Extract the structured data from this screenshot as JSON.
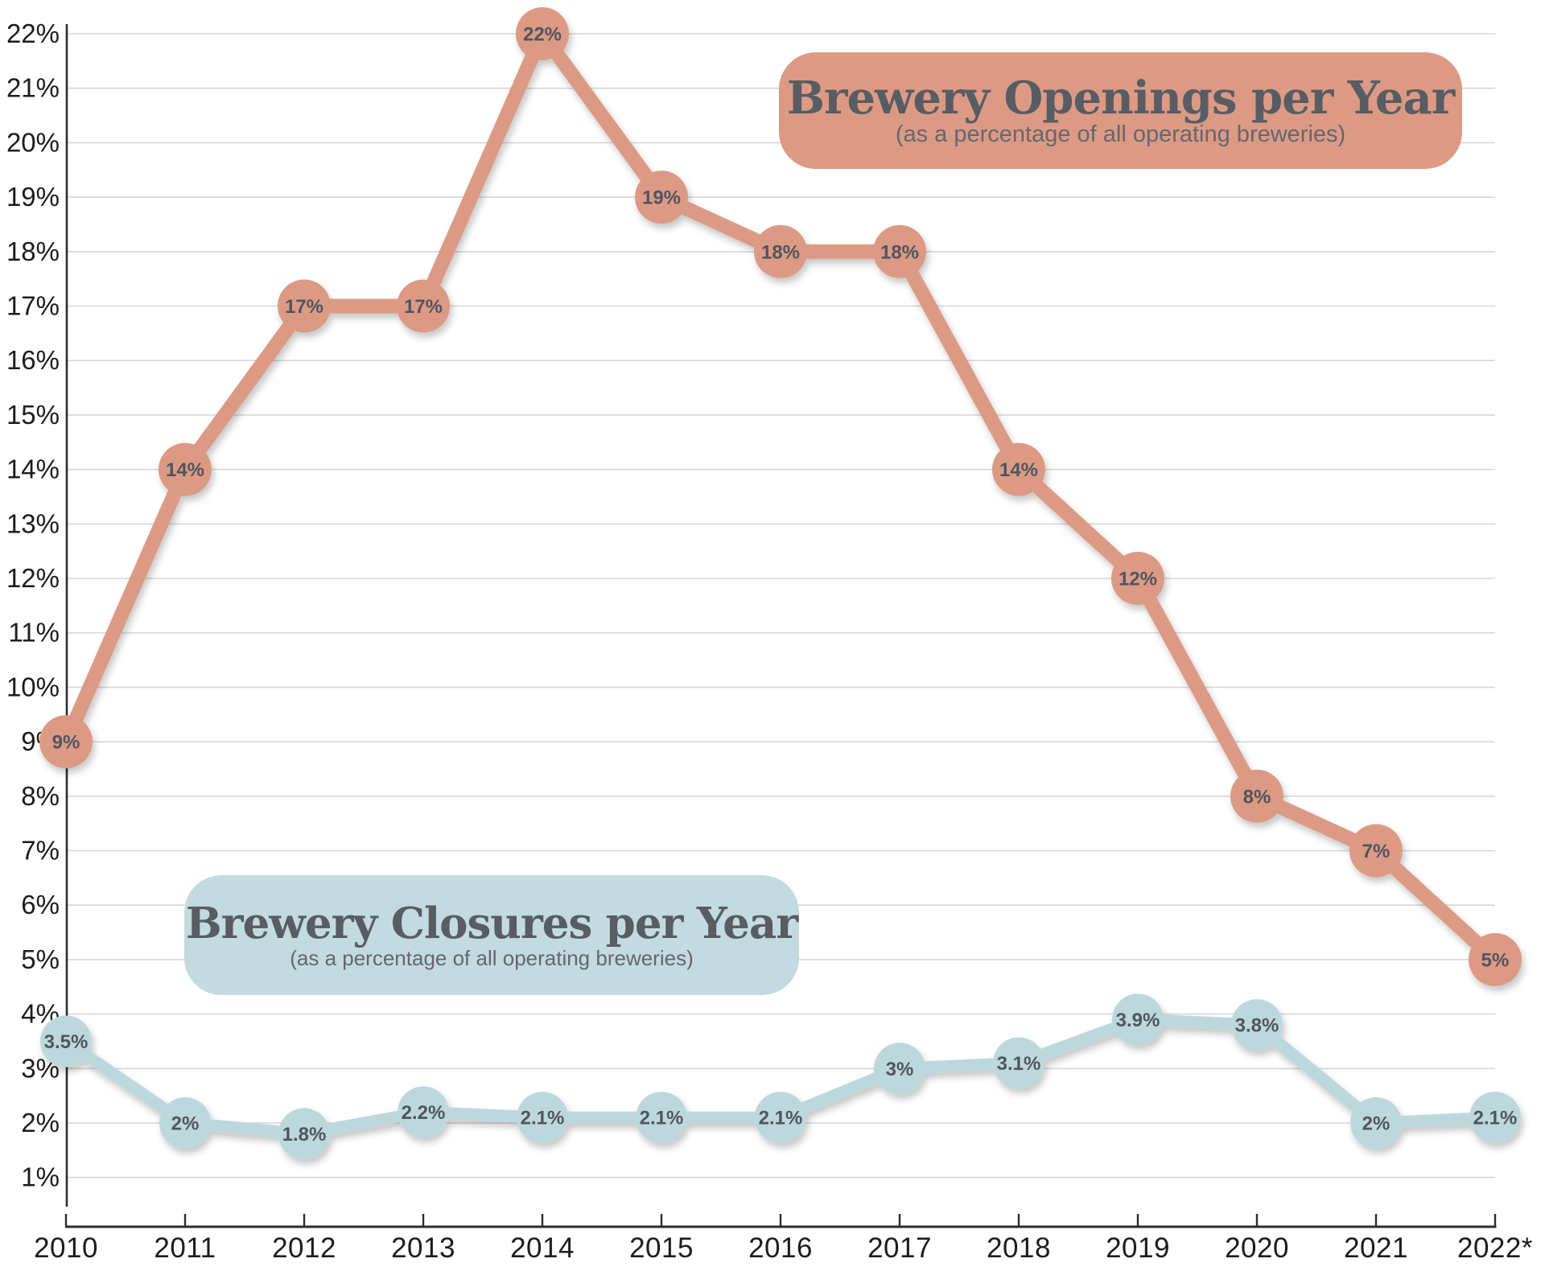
{
  "chart_data": {
    "type": "line",
    "categories": [
      "2010",
      "2011",
      "2012",
      "2013",
      "2014",
      "2015",
      "2016",
      "2017",
      "2018",
      "2019",
      "2020",
      "2021",
      "2022*"
    ],
    "series": [
      {
        "name": "Brewery Openings per Year",
        "values": [
          9,
          14,
          17,
          17,
          22,
          19,
          18,
          18,
          14,
          12,
          8,
          7,
          5
        ],
        "point_labels": [
          "9%",
          "14%",
          "17%",
          "17%",
          "22%",
          "19%",
          "18%",
          "18%",
          "14%",
          "12%",
          "8%",
          "7%",
          "5%"
        ],
        "color": "#dc9a85",
        "line_width": 18,
        "point_radius": 33
      },
      {
        "name": "Brewery Closures per Year",
        "values": [
          3.5,
          2,
          1.8,
          2.2,
          2.1,
          2.1,
          2.1,
          3,
          3.1,
          3.9,
          3.8,
          2,
          2.1
        ],
        "point_labels": [
          "3.5%",
          "2%",
          "1.8%",
          "2.2%",
          "2.1%",
          "2.1%",
          "2.1%",
          "3%",
          "3.1%",
          "3.9%",
          "3.8%",
          "2%",
          "2.1%"
        ],
        "color": "#bdd8dd",
        "line_width": 15,
        "point_radius": 32
      }
    ],
    "ylim": [
      0,
      22
    ],
    "ytick_labels": [
      "1%",
      "2%",
      "3%",
      "4%",
      "5%",
      "6%",
      "7%",
      "8%",
      "9%",
      "10%",
      "11%",
      "12%",
      "13%",
      "14%",
      "15%",
      "16%",
      "17%",
      "18%",
      "19%",
      "20%",
      "21%",
      "22%"
    ],
    "grid": true,
    "legend_position": "floating rounded boxes inside plot"
  },
  "legend": {
    "openings": {
      "title": "Brewery Openings per Year",
      "subtitle": "(as a percentage of all operating breweries)",
      "bg_color": "#dc9a85"
    },
    "closures": {
      "title": "Brewery Closures per Year",
      "subtitle": "(as a percentage of all operating breweries)",
      "bg_color": "#c3dbe0"
    }
  },
  "colors": {
    "background": "#ffffff",
    "grid": "#d7d7d7",
    "axis": "#2d2d2d",
    "axis_text": "#1c1c1c",
    "point_label_text": "#4f555e",
    "legend_title_text": "#585c63",
    "legend_subtitle_text": "#63676d"
  }
}
